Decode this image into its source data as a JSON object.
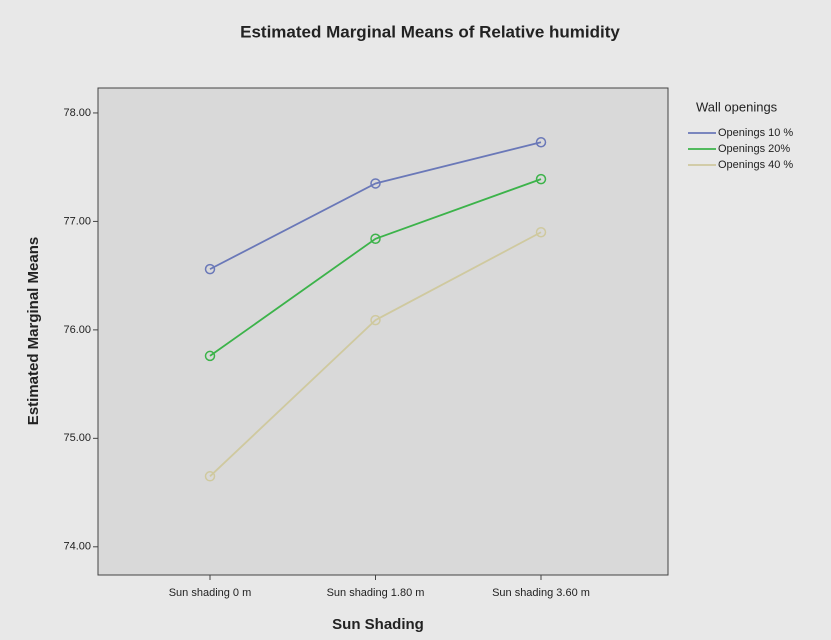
{
  "chart_data": {
    "type": "line",
    "title": "Estimated Marginal Means of Relative humidity",
    "xlabel": "Sun Shading",
    "ylabel": "Estimated Marginal Means",
    "categories": [
      "Sun shading 0 m",
      "Sun shading 1.80 m",
      "Sun shading 3.60 m"
    ],
    "legend_title": "Wall openings",
    "series": [
      {
        "name": "Openings 10 %",
        "color": "#6a78b8",
        "values": [
          76.56,
          77.35,
          77.73
        ]
      },
      {
        "name": "Openings 20%",
        "color": "#3cb34a",
        "values": [
          75.76,
          76.84,
          77.39
        ]
      },
      {
        "name": "Openings 40 %",
        "color": "#cfc99f",
        "values": [
          74.65,
          76.09,
          76.9
        ]
      }
    ],
    "ylim": [
      73.74,
      78.23
    ],
    "yticks": [
      {
        "value": 74,
        "label": "74.00"
      },
      {
        "value": 75,
        "label": "75.00"
      },
      {
        "value": 76,
        "label": "76.00"
      },
      {
        "value": 77,
        "label": "77.00"
      },
      {
        "value": 78,
        "label": "78.00"
      }
    ],
    "legend_position": "right"
  }
}
